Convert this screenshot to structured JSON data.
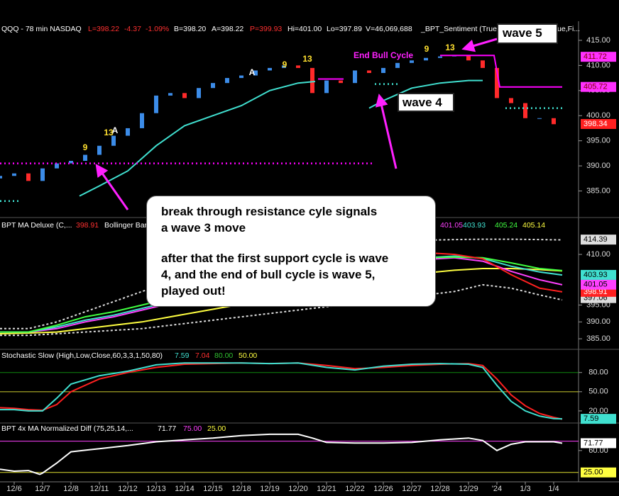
{
  "x_axis": {
    "xlim": [
      -0.5,
      19.875
    ],
    "xticks": [
      {
        "value": 0,
        "label": "12/6"
      },
      {
        "value": 1,
        "label": "12/7"
      },
      {
        "value": 2,
        "label": "12/8"
      },
      {
        "value": 3,
        "label": "12/11"
      },
      {
        "value": 4,
        "label": "12/12"
      },
      {
        "value": 5,
        "label": "12/13"
      },
      {
        "value": 6,
        "label": "12/14"
      },
      {
        "value": 7,
        "label": "12/15"
      },
      {
        "value": 8,
        "label": "12/18"
      },
      {
        "value": 9,
        "label": "12/19"
      },
      {
        "value": 10,
        "label": "12/20"
      },
      {
        "value": 11,
        "label": "12/21"
      },
      {
        "value": 12,
        "label": "12/22"
      },
      {
        "value": 13,
        "label": "12/26"
      },
      {
        "value": 14,
        "label": "12/27"
      },
      {
        "value": 15,
        "label": "12/28"
      },
      {
        "value": 16,
        "label": "12/29"
      },
      {
        "value": 17,
        "label": "'24"
      },
      {
        "value": 18,
        "label": "1/3"
      },
      {
        "value": 19,
        "label": "1/4"
      }
    ]
  },
  "chart_data": [
    {
      "type": "candlestick",
      "legend": [
        {
          "text": "QQQ - 78 min  NASDAQ",
          "color": "#ffffff"
        },
        {
          "text": "L=398.22",
          "color": "#ff3030"
        },
        {
          "text": "-4.37",
          "color": "#ff3030"
        },
        {
          "text": "-1.09%",
          "color": "#ff3030"
        },
        {
          "text": "B=398.20",
          "color": "#ffffff"
        },
        {
          "text": "A=398.22",
          "color": "#ffffff"
        },
        {
          "text": "P=399.93",
          "color": "#ff3030"
        },
        {
          "text": "Hi=401.00",
          "color": "#ffffff"
        },
        {
          "text": "Lo=397.89",
          "color": "#ffffff"
        },
        {
          "text": "V=46,069,688",
          "color": "#ffffff"
        },
        {
          "text": "_BPT_Sentiment (True,",
          "color": "#ffffff"
        },
        {
          "text": "ue,Fi...",
          "color": "#ffffff"
        }
      ],
      "x": [
        -0.5,
        0,
        0.5,
        1,
        1.5,
        2,
        2.5,
        3,
        3.5,
        4,
        4.5,
        5,
        5.5,
        6,
        6.5,
        7,
        7.5,
        8,
        8.5,
        9,
        9.5,
        10,
        10.5,
        11,
        11.5,
        12,
        12.5,
        13,
        13.5,
        14,
        14.5,
        15,
        15.5,
        16,
        16.5,
        17,
        17.5,
        18,
        18.5,
        19
      ],
      "open": [
        387.5,
        388,
        388.5,
        387,
        389.5,
        390.5,
        391,
        392.2,
        394,
        396,
        397.5,
        400.5,
        404,
        404.5,
        403.5,
        405.5,
        406.5,
        407.5,
        408,
        409,
        409.5,
        410,
        409.5,
        404.5,
        407,
        406.5,
        409,
        408.5,
        409.5,
        410.5,
        411,
        411.5,
        411.8,
        412,
        411,
        409.5,
        403.5,
        402.5,
        399.5,
        399.5
      ],
      "close": [
        388,
        388.5,
        387,
        389.5,
        390.5,
        391,
        392.2,
        394,
        396,
        397.5,
        400.5,
        404,
        404.5,
        403.5,
        405.5,
        406.5,
        407.5,
        408,
        409,
        409.5,
        410,
        409.5,
        404.5,
        407,
        406.5,
        409,
        408.5,
        409.5,
        410.5,
        411,
        411.5,
        411.8,
        412,
        411,
        409.5,
        403.5,
        402.5,
        399.5,
        399.5,
        398.3
      ],
      "up_color": "#3c8ce8",
      "down_color": "#ff2a2a",
      "series": [
        {
          "color": "#40e0d0",
          "style": "solid",
          "x": [
            2.3,
            3,
            4,
            5,
            6,
            7,
            8,
            9,
            10,
            10.6,
            11.75,
            12.5,
            13,
            14,
            15,
            16,
            16.5
          ],
          "values": [
            384,
            386,
            389,
            394,
            398,
            400,
            402,
            405,
            406.5,
            406.8,
            null,
            401.5,
            403,
            405.5,
            406.5,
            407,
            407
          ]
        },
        {
          "color": "#ff00ff",
          "style": "dotted",
          "x": [
            -0.5,
            12.6
          ],
          "values": [
            390.5,
            390.5
          ]
        },
        {
          "color": "#ff00ff",
          "style": "solid",
          "x": [
            15,
            16.9,
            17.1,
            19.3
          ],
          "values": [
            412,
            412,
            405.7,
            405.7
          ]
        },
        {
          "color": "#40e0d0",
          "style": "dotted",
          "x": [
            17.3,
            19.3
          ],
          "values": [
            401.5,
            401.5
          ]
        },
        {
          "color": "#40e0d0",
          "style": "dotted",
          "x": [
            12.7,
            13.5
          ],
          "values": [
            406.3,
            406.3
          ]
        },
        {
          "color": "#ff00ff",
          "style": "solid",
          "x": [
            10.7,
            11.6
          ],
          "values": [
            407.3,
            407.3
          ]
        },
        {
          "color": "#40e0d0",
          "style": "dotted",
          "x": [
            -0.5,
            0.2
          ],
          "values": [
            383,
            383
          ]
        }
      ],
      "annotations": [
        {
          "text": "9",
          "color": "#ffe030"
        },
        {
          "text": "13",
          "color": "#ffe030"
        },
        {
          "text": "A",
          "color": "#ffffff"
        },
        {
          "text": "A",
          "color": "#ffffff"
        },
        {
          "text": "9",
          "color": "#ffe030"
        },
        {
          "text": "13",
          "color": "#ffe030"
        },
        {
          "text": "9",
          "color": "#ffe030"
        },
        {
          "text": "13",
          "color": "#ffe030"
        },
        {
          "text": "End Bull Cycle",
          "color": "#ff20ff"
        }
      ],
      "ylim": [
        380.7,
        418.8
      ],
      "yticks": [
        {
          "value": 385,
          "label": "385.00"
        },
        {
          "value": 390,
          "label": "390.00"
        },
        {
          "value": 395,
          "label": "395.00"
        },
        {
          "value": 400,
          "label": "400.00"
        },
        {
          "value": 405,
          "label": "405.00"
        },
        {
          "value": 410,
          "label": "410.00"
        },
        {
          "value": 415,
          "label": "415.00"
        }
      ],
      "boxes": [
        {
          "value": 411.72,
          "color": "#ff30ff",
          "text_color": "#800000"
        },
        {
          "value": 405.72,
          "color": "#ff30ff",
          "text_color": "#800000"
        },
        {
          "value": 398.34,
          "color": "#ff2020",
          "text_color": "#ffffff"
        }
      ]
    },
    {
      "type": "line",
      "legend": [
        {
          "text": "BPT MA Deluxe (C,...",
          "color": "#ffffff"
        },
        {
          "text": "398.91",
          "color": "#ff3030"
        },
        {
          "text": "Bollinger Bar",
          "color": "#ffffff"
        },
        {
          "text": "401.05",
          "color": "#ff40ff"
        },
        {
          "text": "403.93",
          "color": "#40e0d0"
        },
        {
          "text": "405.24",
          "color": "#40ff40"
        },
        {
          "text": "405.14",
          "color": "#ffff40"
        }
      ],
      "x": [
        -0.5,
        0.5,
        1.5,
        2.5,
        3.5,
        4.5,
        5.5,
        6.5,
        7.5,
        8.5,
        9.5,
        10.5,
        11.5,
        12.5,
        13.5,
        14.5,
        15.5,
        16.5,
        17.5,
        18.5,
        19.3
      ],
      "series": [
        {
          "color": "#dddddd",
          "style": "dashed",
          "values": [
            388,
            388,
            390,
            393,
            396,
            399,
            402,
            405,
            407,
            409,
            411,
            412,
            413,
            413.5,
            414,
            414.2,
            414.4,
            414.5,
            414.5,
            414.4,
            414.3
          ]
        },
        {
          "color": "#dddddd",
          "style": "dashed",
          "values": [
            386,
            386,
            386.5,
            387,
            387.5,
            388,
            389,
            390,
            391,
            392,
            393,
            394,
            395,
            396,
            397,
            398,
            399,
            401,
            400,
            398,
            396.5
          ]
        },
        {
          "color": "#ffff40",
          "style": "solid",
          "values": [
            386.5,
            386.7,
            387,
            388,
            389,
            390,
            391.5,
            393,
            394.5,
            396,
            397.5,
            399,
            400.5,
            402,
            403.5,
            404.5,
            405.3,
            405.8,
            405.8,
            405.5,
            405.1
          ]
        },
        {
          "color": "#ff40ff",
          "style": "solid",
          "values": [
            387,
            387,
            388,
            390,
            391.5,
            393.5,
            395.5,
            397.5,
            399.5,
            401.5,
            403,
            404.5,
            405.5,
            406.5,
            407.5,
            408.5,
            409,
            408,
            405,
            402.5,
            401
          ]
        },
        {
          "color": "#40e0d0",
          "style": "solid",
          "values": [
            387,
            387,
            388.5,
            390.5,
            392,
            394,
            396,
            398,
            400,
            402,
            403.5,
            405,
            406,
            407,
            408,
            409,
            409.5,
            408.8,
            406.5,
            404.8,
            403.9
          ]
        },
        {
          "color": "#40ff40",
          "style": "solid",
          "values": [
            387,
            387,
            389,
            391.5,
            393,
            395,
            397,
            399,
            401,
            403,
            404.5,
            405.5,
            406.5,
            407.5,
            408.5,
            409,
            409.2,
            409,
            407.5,
            405.8,
            405.2
          ]
        },
        {
          "color": "#ff2020",
          "style": "solid",
          "values": [
            null,
            null,
            null,
            null,
            null,
            null,
            null,
            null,
            null,
            null,
            null,
            null,
            null,
            null,
            null,
            410.5,
            410,
            408.7,
            404,
            400,
            398.9
          ]
        }
      ],
      "ylim": [
        382.5,
        416.1
      ],
      "yticks": [
        {
          "value": 385,
          "label": "385.00"
        },
        {
          "value": 390,
          "label": "390.00"
        },
        {
          "value": 395,
          "label": "395.00"
        },
        {
          "value": 410,
          "label": "410.00"
        }
      ],
      "boxes": [
        {
          "value": 414.39,
          "color": "#dddddd",
          "text_color": "#000000"
        },
        {
          "value": 397.06,
          "color": "#dddddd",
          "text_color": "#000000"
        },
        {
          "value": 398.91,
          "color": "#ff2020",
          "text_color": "#ffffff"
        },
        {
          "value": 401.05,
          "color": "#ff40ff",
          "text_color": "#000000"
        },
        {
          "value": 403.93,
          "color": "#40e0d0",
          "text_color": "#000000"
        }
      ]
    },
    {
      "type": "line",
      "legend": [
        {
          "text": "Stochastic Slow (High,Low,Close,60,3,3,1,50,80)",
          "color": "#ffffff"
        },
        {
          "text": "7.59",
          "color": "#40e0d0"
        },
        {
          "text": "7.04",
          "color": "#ff3030"
        },
        {
          "text": "80.00",
          "color": "#30c030"
        },
        {
          "text": "50.00",
          "color": "#ffff40"
        }
      ],
      "x": [
        -0.5,
        0,
        0.5,
        1,
        1.5,
        2,
        3,
        4,
        5,
        6,
        7,
        8,
        9,
        10,
        11,
        12,
        13,
        14,
        15,
        16,
        16.5,
        17,
        17.5,
        18,
        18.5,
        19,
        19.3
      ],
      "levels": [
        {
          "value": 80,
          "color": "#118811"
        },
        {
          "value": 50,
          "color": "#cccc30"
        }
      ],
      "series": [
        {
          "color": "#ff2020",
          "style": "solid",
          "values": [
            25,
            24,
            22,
            21,
            30,
            50,
            70,
            80,
            88,
            93,
            94,
            95,
            94,
            95,
            91,
            86,
            88,
            91,
            93,
            94,
            91,
            70,
            45,
            28,
            16,
            10,
            7.04
          ]
        },
        {
          "color": "#40e0d0",
          "style": "solid",
          "values": [
            22,
            22,
            20,
            20,
            40,
            62,
            75,
            82,
            92,
            95,
            95,
            95,
            94,
            95,
            88,
            84,
            90,
            93,
            94,
            93,
            88,
            60,
            35,
            20,
            12,
            8,
            7.59
          ]
        }
      ],
      "ylim": [
        0,
        114
      ],
      "yticks": [
        {
          "value": 20,
          "label": "20.00"
        },
        {
          "value": 50,
          "label": "50.00"
        },
        {
          "value": 80,
          "label": "80.00"
        }
      ],
      "boxes": [
        {
          "value": 7.59,
          "color": "#40e0d0",
          "text_color": "#000000"
        }
      ]
    },
    {
      "type": "line",
      "legend": [
        {
          "text": "BPT 4x MA Normalized Diff (75,25,14,...",
          "color": "#ffffff"
        },
        {
          "text": "71.77",
          "color": "#ffffff"
        },
        {
          "text": "75.00",
          "color": "#ff40ff"
        },
        {
          "text": "25.00",
          "color": "#ffff40"
        }
      ],
      "x": [
        -0.5,
        0,
        0.5,
        0.9,
        1,
        1.5,
        2,
        3,
        4,
        5,
        6,
        7,
        8,
        9,
        10,
        10.5,
        11,
        12,
        13,
        14,
        15,
        16,
        16.5,
        17,
        17.5,
        18,
        19,
        19.3
      ],
      "levels": [
        {
          "value": 75,
          "color": "#ff40ff"
        },
        {
          "value": 25,
          "color": "#dddd30"
        }
      ],
      "series": [
        {
          "color": "#ffffff",
          "style": "solid",
          "values": [
            30,
            27,
            28,
            22,
            24,
            40,
            58,
            63,
            68,
            74,
            77,
            80,
            84,
            86,
            86,
            80,
            73,
            72,
            72,
            73,
            77,
            80,
            76,
            60,
            70,
            74,
            74,
            71.77
          ]
        }
      ],
      "ylim": [
        10,
        100.6
      ],
      "yticks": [
        {
          "value": 60,
          "label": "60.00"
        }
      ],
      "boxes": [
        {
          "value": 71.77,
          "color": "#ffffff",
          "text_color": "#000000"
        },
        {
          "value": 25,
          "label": "25.00",
          "color": "#ffff40",
          "text_color": "#000000"
        }
      ]
    }
  ],
  "callouts": {
    "wave5": "wave 5",
    "wave4": "wave 4",
    "note": [
      "break through resistance cyle signals",
      "a wave 3 move",
      "after that the first support cycle is wave",
      "4, and the end of bull cycle is wave 5,",
      "played out!"
    ]
  }
}
